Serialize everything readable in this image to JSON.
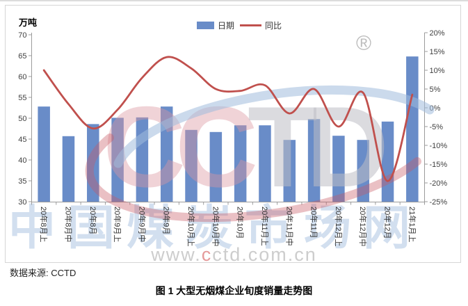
{
  "chart_data": {
    "type": "bar",
    "subtype": "bar+line-combo",
    "title": "图 1 大型无烟煤企业旬度销量走势图",
    "unit_label": "万吨",
    "categories": [
      "20年8月上",
      "20年8月中",
      "20年8月",
      "20年9月上",
      "20年9月中",
      "20年9月",
      "20年10月上",
      "20年10月中",
      "20年10月",
      "20年11月上",
      "20年11月中",
      "20年11月",
      "20年12月上",
      "20年12月中",
      "20年12月",
      "21年1月上"
    ],
    "series": [
      {
        "name": "日期",
        "type": "bar",
        "axis": "left",
        "unit": "万吨",
        "values": [
          52.8,
          45.7,
          48.6,
          50.1,
          50.2,
          52.8,
          47.2,
          46.7,
          48.3,
          48.3,
          44.8,
          49.8,
          45.8,
          44.8,
          49.2,
          64.8
        ]
      },
      {
        "name": "同比",
        "type": "line",
        "axis": "right",
        "unit": "%",
        "values": [
          10,
          1,
          -5.5,
          -0.5,
          8,
          13.5,
          10.5,
          5,
          4.5,
          6,
          -1.5,
          5,
          -5,
          4,
          -19.5,
          3.5
        ]
      }
    ],
    "left_axis": {
      "min": 30,
      "max": 70,
      "step": 5,
      "tick_labels": [
        "70",
        "65",
        "60",
        "55",
        "50",
        "45",
        "40",
        "35",
        "30"
      ]
    },
    "right_axis": {
      "min": -25,
      "max": 20,
      "step": 5,
      "tick_labels": [
        "20%",
        "15%",
        "10%",
        "5%",
        "0%",
        "-5%",
        "-10%",
        "-15%",
        "-20%",
        "-25%"
      ]
    },
    "grid": false,
    "legend_position": "top-center"
  },
  "watermark": {
    "big_text": "中国煤炭市场网",
    "url_p1": "www.",
    "url_p2": "c",
    "url_p3": "ctd.com.cn",
    "logo_letters": [
      "C",
      "C",
      "T",
      "D"
    ],
    "registered_mark": "®"
  },
  "source_note": "数据来源: CCTD",
  "caption": "图 1 大型无烟煤企业旬度销量走势图",
  "colors": {
    "bar": "#698cc8",
    "line": "#c0504d",
    "axis": "#9b9b9b",
    "tick_text": "#3f3f3f",
    "watermark_pink": "rgba(219,150,160,0.42)",
    "watermark_gray": "rgba(190,190,196,0.55)",
    "watermark_blue_arc": "rgba(160,188,220,0.55)",
    "watermark_red_arc": "rgba(200,90,100,0.38)"
  }
}
